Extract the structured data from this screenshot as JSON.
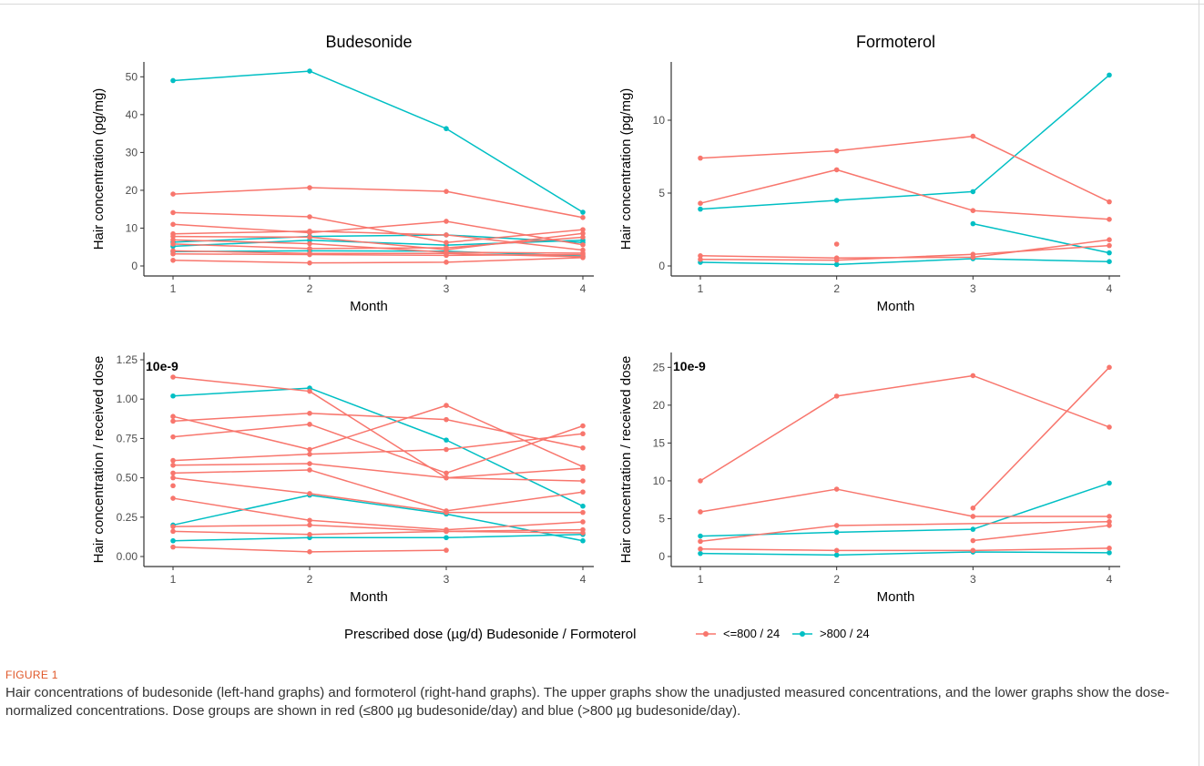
{
  "figure": {
    "label": "FIGURE 1",
    "caption": "Hair concentrations of budesonide (left-hand graphs) and formoterol (right-hand graphs). The upper graphs show the unadjusted measured concentrations, and the lower graphs show the dose-normalized concentrations. Dose groups are shown in red (≤800 µg budesonide/day) and blue (>800 µg budesonide/day)."
  },
  "legend": {
    "title": "Prescribed dose (µg/d) Budesonide / Formoterol",
    "entries": [
      {
        "label": "<=800 / 24",
        "color": "#F8766D"
      },
      {
        "label": ">800 / 24",
        "color": "#00BFC4"
      }
    ]
  },
  "chart_data": [
    {
      "type": "line",
      "title": "Budesonide",
      "xlabel": "Month",
      "ylabel": "Hair concentration (pg/mg)",
      "sci_label": "",
      "xlim": [
        1,
        4
      ],
      "ylim": [
        0,
        52
      ],
      "xticks": [
        1,
        2,
        3,
        4
      ],
      "yticks": [
        0,
        10,
        20,
        30,
        40,
        50
      ],
      "grid": false,
      "series": [
        {
          "group": ">800 / 24",
          "x": [
            1,
            2,
            3,
            4
          ],
          "y": [
            49,
            51.5,
            36.3,
            14.2
          ]
        },
        {
          "group": ">800 / 24",
          "x": [
            1,
            2,
            3,
            4
          ],
          "y": [
            5.2,
            6.8,
            5.5,
            6.8
          ]
        },
        {
          "group": ">800 / 24",
          "x": [
            1,
            2,
            3,
            4
          ],
          "y": [
            3.8,
            4.0,
            3.9,
            2.6
          ]
        },
        {
          "group": ">800 / 24",
          "x": [
            1,
            2,
            3,
            4
          ],
          "y": [
            6.3,
            7.8,
            8.2,
            6.2
          ]
        },
        {
          "group": "<=800 / 24",
          "x": [
            1,
            2,
            3,
            4
          ],
          "y": [
            19,
            20.7,
            19.7,
            12.8
          ]
        },
        {
          "group": "<=800 / 24",
          "x": [
            1,
            2,
            3,
            4
          ],
          "y": [
            14.1,
            13.0,
            6.2,
            9.6
          ]
        },
        {
          "group": "<=800 / 24",
          "x": [
            1,
            2,
            3,
            4
          ],
          "y": [
            11.0,
            8.8,
            11.8,
            5.6
          ]
        },
        {
          "group": "<=800 / 24",
          "x": [
            1,
            2,
            3,
            4
          ],
          "y": [
            8.5,
            9.2,
            8.2,
            4.2
          ]
        },
        {
          "group": "<=800 / 24",
          "x": [
            1,
            2,
            3,
            4
          ],
          "y": [
            7.8,
            7.6,
            4.3,
            8.6
          ]
        },
        {
          "group": "<=800 / 24",
          "x": [
            1,
            2,
            3,
            4
          ],
          "y": [
            6.9,
            5.9,
            3.6,
            3.4
          ]
        },
        {
          "group": "<=800 / 24",
          "x": [
            1,
            2,
            3,
            4
          ],
          "y": [
            5.8,
            4.6,
            4.8,
            7.6
          ]
        },
        {
          "group": "<=800 / 24",
          "x": [
            1,
            2,
            3,
            4
          ],
          "y": [
            4.0,
            3.3,
            3.3,
            2.4
          ]
        },
        {
          "group": "<=800 / 24",
          "x": [
            1,
            2,
            3,
            4
          ],
          "y": [
            3.2,
            3.0,
            2.8,
            3.0
          ]
        },
        {
          "group": "<=800 / 24",
          "x": [
            1,
            2,
            3,
            4
          ],
          "y": [
            1.5,
            0.8,
            1.0,
            2.2
          ]
        }
      ]
    },
    {
      "type": "line",
      "title": "Formoterol",
      "xlabel": "Month",
      "ylabel": "Hair concentration (pg/mg)",
      "sci_label": "",
      "xlim": [
        1,
        4
      ],
      "ylim": [
        0,
        13.5
      ],
      "xticks": [
        1,
        2,
        3,
        4
      ],
      "yticks": [
        0,
        5,
        10
      ],
      "grid": false,
      "series": [
        {
          "group": ">800 / 24",
          "x": [
            1,
            2,
            3,
            4
          ],
          "y": [
            3.9,
            4.5,
            5.1,
            13.1
          ]
        },
        {
          "group": ">800 / 24",
          "x": [
            3,
            4
          ],
          "y": [
            2.9,
            0.9
          ]
        },
        {
          "group": ">800 / 24",
          "x": [
            1,
            2,
            3,
            4
          ],
          "y": [
            0.25,
            0.1,
            0.5,
            0.3
          ]
        },
        {
          "group": "<=800 / 24",
          "x": [
            1,
            2,
            3,
            4
          ],
          "y": [
            7.4,
            7.9,
            8.9,
            4.4
          ]
        },
        {
          "group": "<=800 / 24",
          "x": [
            1,
            2,
            3,
            4
          ],
          "y": [
            4.3,
            6.6,
            3.8,
            3.2
          ]
        },
        {
          "group": "<=800 / 24",
          "x": [
            1,
            2,
            3,
            4
          ],
          "y": [
            0.7,
            0.55,
            0.6,
            1.8
          ]
        },
        {
          "group": "<=800 / 24",
          "x": [
            1,
            2,
            3,
            4
          ],
          "y": [
            0.45,
            0.4,
            0.8,
            1.4
          ]
        },
        {
          "group": "<=800 / 24",
          "x": [
            2
          ],
          "y": [
            1.5
          ]
        }
      ]
    },
    {
      "type": "line",
      "title": "",
      "xlabel": "Month",
      "ylabel": "Hair concentration / received dose",
      "sci_label": "10e-9",
      "xlim": [
        1,
        4
      ],
      "ylim": [
        0,
        1.25
      ],
      "xticks": [
        1,
        2,
        3,
        4
      ],
      "yticks": [
        0.0,
        0.25,
        0.5,
        0.75,
        1.0,
        1.25
      ],
      "grid": false,
      "series": [
        {
          "group": ">800 / 24",
          "x": [
            1,
            2,
            3,
            4
          ],
          "y": [
            1.02,
            1.07,
            0.74,
            0.32
          ]
        },
        {
          "group": ">800 / 24",
          "x": [
            1,
            2,
            3,
            4
          ],
          "y": [
            0.2,
            0.39,
            0.27,
            0.1
          ]
        },
        {
          "group": ">800 / 24",
          "x": [
            1,
            2,
            3,
            4
          ],
          "y": [
            0.1,
            0.12,
            0.12,
            0.14
          ]
        },
        {
          "group": "<=800 / 24",
          "x": [
            1,
            2,
            3,
            4
          ],
          "y": [
            1.14,
            1.05,
            0.5,
            0.56
          ]
        },
        {
          "group": "<=800 / 24",
          "x": [
            1,
            2,
            3,
            4
          ],
          "y": [
            0.89,
            0.68,
            0.96,
            0.57
          ]
        },
        {
          "group": "<=800 / 24",
          "x": [
            1,
            2,
            3,
            4
          ],
          "y": [
            0.86,
            0.91,
            0.87,
            0.69
          ]
        },
        {
          "group": "<=800 / 24",
          "x": [
            1,
            2,
            3,
            4
          ],
          "y": [
            0.76,
            0.84,
            0.53,
            0.83
          ]
        },
        {
          "group": "<=800 / 24",
          "x": [
            1,
            2,
            3,
            4
          ],
          "y": [
            0.61,
            0.65,
            0.68,
            0.78
          ]
        },
        {
          "group": "<=800 / 24",
          "x": [
            1,
            2,
            3,
            4
          ],
          "y": [
            0.58,
            0.59,
            0.5,
            0.48
          ]
        },
        {
          "group": "<=800 / 24",
          "x": [
            1,
            2,
            3,
            4
          ],
          "y": [
            0.53,
            0.55,
            0.29,
            0.41
          ]
        },
        {
          "group": "<=800 / 24",
          "x": [
            1,
            2,
            3,
            4
          ],
          "y": [
            0.5,
            0.4,
            0.28,
            0.28
          ]
        },
        {
          "group": "<=800 / 24",
          "x": [
            1,
            2,
            3,
            4
          ],
          "y": [
            0.37,
            0.23,
            0.17,
            0.22
          ]
        },
        {
          "group": "<=800 / 24",
          "x": [
            1,
            2,
            3,
            4
          ],
          "y": [
            0.19,
            0.2,
            0.16,
            0.17
          ]
        },
        {
          "group": "<=800 / 24",
          "x": [
            1,
            2,
            3,
            4
          ],
          "y": [
            0.16,
            0.14,
            0.16,
            0.15
          ]
        },
        {
          "group": "<=800 / 24",
          "x": [
            1,
            2,
            3,
            4
          ],
          "y": [
            0.06,
            0.03,
            0.04,
            null
          ]
        },
        {
          "group": "<=800 / 24",
          "x": [
            1
          ],
          "y": [
            0.45
          ]
        }
      ]
    },
    {
      "type": "line",
      "title": "",
      "xlabel": "Month",
      "ylabel": "Hair concentration / received dose",
      "sci_label": "10e-9",
      "xlim": [
        1,
        4
      ],
      "ylim": [
        0,
        26
      ],
      "xticks": [
        1,
        2,
        3,
        4
      ],
      "yticks": [
        0,
        5,
        10,
        15,
        20,
        25
      ],
      "grid": false,
      "series": [
        {
          "group": ">800 / 24",
          "x": [
            1,
            2,
            3,
            4
          ],
          "y": [
            2.7,
            3.2,
            3.6,
            9.7
          ]
        },
        {
          "group": ">800 / 24",
          "x": [
            1,
            2,
            3,
            4
          ],
          "y": [
            0.4,
            0.2,
            0.6,
            0.5
          ]
        },
        {
          "group": "<=800 / 24",
          "x": [
            1,
            2,
            3,
            4
          ],
          "y": [
            10.0,
            21.2,
            23.9,
            17.1
          ]
        },
        {
          "group": "<=800 / 24",
          "x": [
            1,
            2,
            3,
            4
          ],
          "y": [
            5.9,
            8.9,
            5.3,
            5.3
          ]
        },
        {
          "group": "<=800 / 24",
          "x": [
            3,
            4
          ],
          "y": [
            6.4,
            25.0
          ]
        },
        {
          "group": "<=800 / 24",
          "x": [
            3,
            4
          ],
          "y": [
            2.1,
            4.1
          ]
        },
        {
          "group": "<=800 / 24",
          "x": [
            1,
            2,
            3,
            4
          ],
          "y": [
            1.0,
            0.8,
            0.8,
            1.1
          ]
        },
        {
          "group": "<=800 / 24",
          "x": [
            1,
            2,
            3,
            4
          ],
          "y": [
            2.0,
            4.1,
            null,
            4.6
          ]
        }
      ]
    }
  ]
}
